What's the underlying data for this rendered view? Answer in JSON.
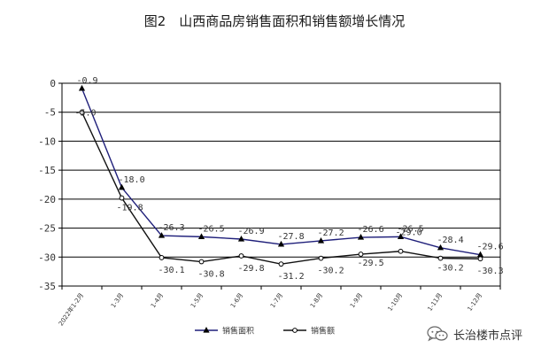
{
  "chart_data": {
    "type": "line",
    "title": "图2　山西商品房销售面积和销售额增长情况",
    "categories": [
      "2022年1-2月",
      "1-3月",
      "1-4月",
      "1-5月",
      "1-6月",
      "1-7月",
      "1-8月",
      "1-9月",
      "1-10月",
      "1-11月",
      "1-12月"
    ],
    "y_ticks": [
      "0",
      "-5",
      "-10",
      "-15",
      "-20",
      "-25",
      "-30",
      "-35"
    ],
    "ylim": [
      -35,
      0
    ],
    "grid": true,
    "legend_position": "bottom",
    "series": [
      {
        "name": "销售面积",
        "color": "#1f1f7a",
        "marker": "triangle",
        "values": [
          -0.9,
          -18.0,
          -26.3,
          -26.5,
          -26.9,
          -27.8,
          -27.2,
          -26.6,
          -26.5,
          -28.4,
          -29.6
        ],
        "labels": [
          "-0.9",
          "-18.0",
          "-26.3",
          "-26.5",
          "-26.9",
          "-27.8",
          "-27.2",
          "-26.6",
          "-26.5",
          "-28.4",
          "-29.6"
        ]
      },
      {
        "name": "销售额",
        "color": "#111111",
        "marker": "circle-open",
        "values": [
          -5.0,
          -19.8,
          -30.1,
          -30.8,
          -29.8,
          -31.2,
          -30.2,
          -29.5,
          -29.0,
          -30.2,
          -30.3
        ],
        "labels": [
          "-5.0",
          "-19.8",
          "-30.1",
          "-30.8",
          "-29.8",
          "-31.2",
          "-30.2",
          "-29.5",
          "-29.0",
          "-30.2",
          "-30.3"
        ]
      }
    ]
  },
  "watermark": {
    "icon": "wechat-icon",
    "text": "长治楼市点评"
  }
}
